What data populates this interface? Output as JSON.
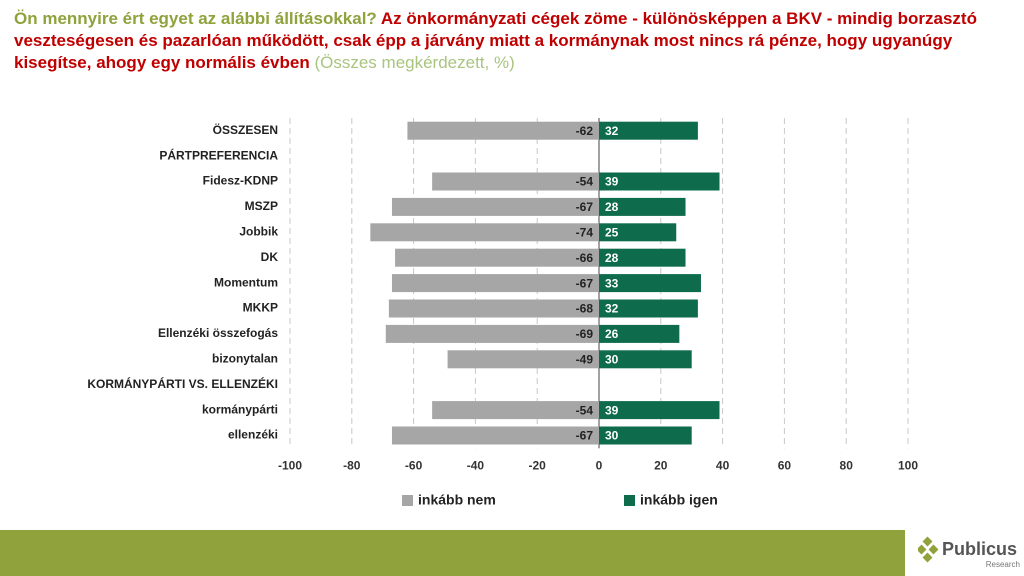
{
  "chart_data": {
    "type": "bar",
    "orientation": "horizontal",
    "title_question": "Ön mennyire ért egyet az alábbi állításokkal?",
    "title_statement": "Az önkormányzati cégek zöme - különösképpen a BKV  - mindig borzasztó veszteségesen és pazarlóan működött, csak épp a járvány miatt a kormánynak most nincs rá pénze, hogy ugyanúgy kisegítse, ahogy egy normális évben",
    "subtitle": "(Összes megkérdezett, %)",
    "categories": [
      "ÖSSZESEN",
      "PÁRTPREFERENCIA",
      "Fidesz-KDNP",
      "MSZP",
      "Jobbik",
      "DK",
      "Momentum",
      "MKKP",
      "Ellenzéki összefogás",
      "bizonytalan",
      "KORMÁNYPÁRTI VS. ELLENZÉKI",
      "kormánypárti",
      "ellenzéki"
    ],
    "series": [
      {
        "name": "inkább nem",
        "color": "#a6a6a6",
        "values": [
          -62,
          null,
          -54,
          -67,
          -74,
          -66,
          -67,
          -68,
          -69,
          -49,
          null,
          -54,
          -67
        ]
      },
      {
        "name": "inkább igen",
        "color": "#0e6b4b",
        "values": [
          32,
          null,
          39,
          28,
          25,
          28,
          33,
          32,
          26,
          30,
          null,
          39,
          30
        ]
      }
    ],
    "xlim": [
      -100,
      100
    ],
    "xticks": [
      -100,
      -80,
      -60,
      -40,
      -20,
      0,
      20,
      40,
      60,
      80,
      100
    ],
    "grid": true
  },
  "logo": {
    "name": "Publicus",
    "tagline": "Research"
  }
}
